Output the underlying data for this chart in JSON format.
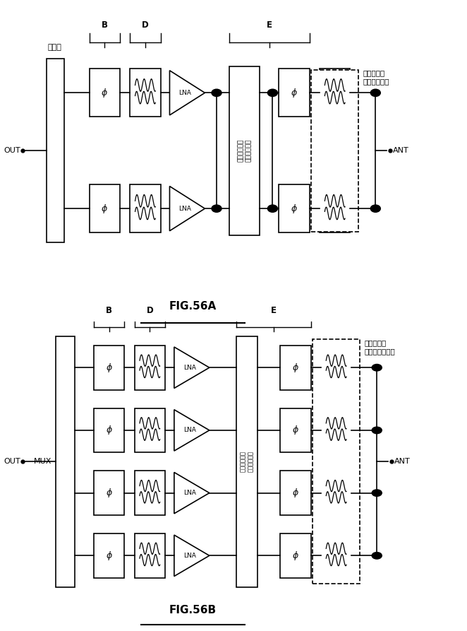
{
  "fig_a_title": "FIG.56A",
  "fig_b_title": "FIG.56B",
  "label_coupler": "結合器",
  "label_filter_a": "フィルタ／\nダイプレクサ",
  "label_filter_b": "フィルタ／\nマルチプレクサ",
  "label_switch": "スイッチング\nネットワーク",
  "label_mux": "MUX",
  "label_out": "OUT",
  "label_ant": "ANT",
  "label_lna": "LNA",
  "label_B": "B",
  "label_D": "D",
  "label_E": "E",
  "bg_color": "#ffffff"
}
